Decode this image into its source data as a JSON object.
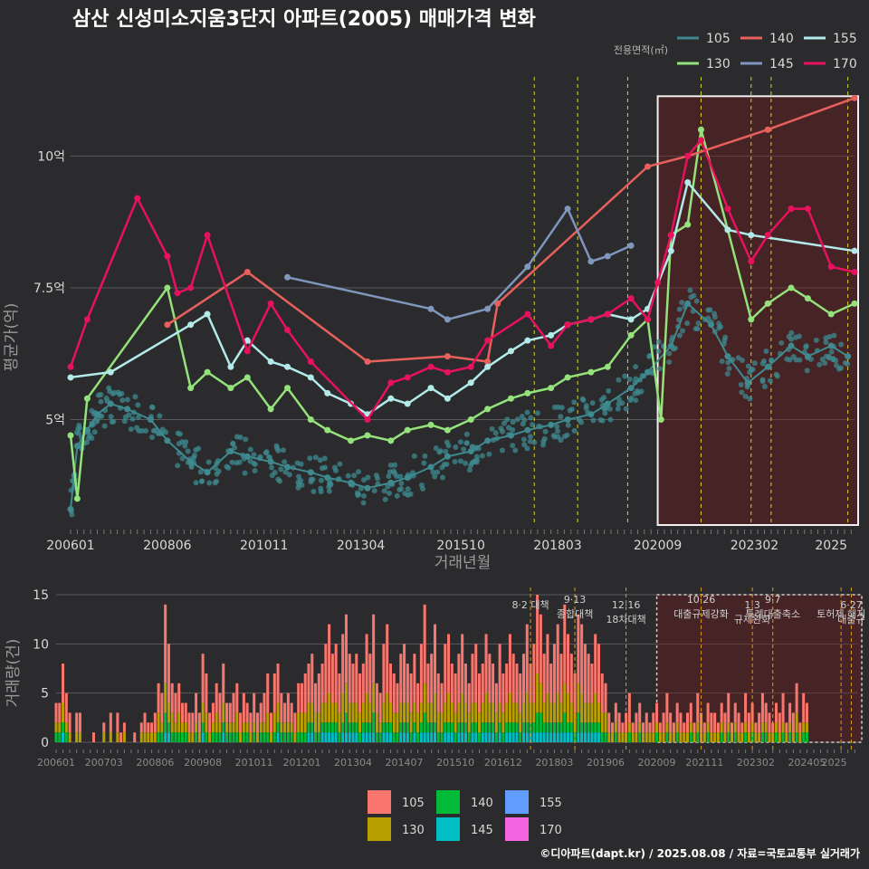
{
  "title": "삼산 신성미소지움3단지 아파트(2005) 매매가격 변화",
  "caption": "©디아파트(dapt.kr) / 2025.08.08 / 자료=국토교통부 실거래가",
  "chart_data": [
    {
      "type": "line",
      "legend_title": "전용면적(㎡)",
      "legend_position": "top-right",
      "xlabel": "거래년월",
      "ylabel": "평균가(억)",
      "x_ticks": [
        "200601",
        "200806",
        "201011",
        "201304",
        "201510",
        "201803",
        "202009",
        "202302",
        "2025"
      ],
      "y_ticks": [
        {
          "v": 5,
          "label": "5억"
        },
        {
          "v": 7.5,
          "label": "7.5억"
        },
        {
          "v": 10,
          "label": "10억"
        }
      ],
      "ylim": [
        3,
        11.5
      ],
      "xlim": [
        "2006-01",
        "2025-08"
      ],
      "grid": true,
      "highlight_range": [
        "2020-09",
        "2025-08"
      ],
      "policy_dates": [
        "2017-08",
        "2018-09",
        "2019-12",
        "2021-10",
        "2023-01",
        "2023-07",
        "2025-06"
      ],
      "series": [
        {
          "name": "105",
          "color": "#3e8a8f",
          "points": [
            [
              "2006-01",
              3.3
            ],
            [
              "2006-03",
              4.5
            ],
            [
              "2006-06",
              4.8
            ],
            [
              "2006-09",
              5.1
            ],
            [
              "2007-01",
              5.3
            ],
            [
              "2007-06",
              5.2
            ],
            [
              "2008-01",
              5.0
            ],
            [
              "2008-06",
              4.6
            ],
            [
              "2009-01",
              4.2
            ],
            [
              "2009-06",
              4.0
            ],
            [
              "2010-01",
              4.4
            ],
            [
              "2010-06",
              4.3
            ],
            [
              "2011-01",
              4.2
            ],
            [
              "2011-06",
              4.1
            ],
            [
              "2012-01",
              4.0
            ],
            [
              "2012-06",
              3.9
            ],
            [
              "2013-01",
              3.8
            ],
            [
              "2013-06",
              3.7
            ],
            [
              "2014-01",
              3.8
            ],
            [
              "2014-06",
              3.9
            ],
            [
              "2015-01",
              4.1
            ],
            [
              "2015-06",
              4.3
            ],
            [
              "2016-01",
              4.4
            ],
            [
              "2016-06",
              4.6
            ],
            [
              "2017-01",
              4.7
            ],
            [
              "2017-06",
              4.8
            ],
            [
              "2018-01",
              4.9
            ],
            [
              "2018-06",
              5.0
            ],
            [
              "2019-01",
              5.1
            ],
            [
              "2019-06",
              5.3
            ],
            [
              "2020-01",
              5.6
            ],
            [
              "2020-06",
              5.9
            ],
            [
              "2021-01",
              6.4
            ],
            [
              "2021-06",
              7.2
            ],
            [
              "2022-01",
              6.8
            ],
            [
              "2022-06",
              6.2
            ],
            [
              "2022-12",
              5.7
            ],
            [
              "2023-06",
              6.0
            ],
            [
              "2024-01",
              6.4
            ],
            [
              "2024-06",
              6.2
            ],
            [
              "2025-01",
              6.4
            ],
            [
              "2025-06",
              6.2
            ]
          ]
        },
        {
          "name": "130",
          "color": "#94e27b",
          "points": [
            [
              "2006-01",
              4.7
            ],
            [
              "2006-03",
              3.5
            ],
            [
              "2006-06",
              5.4
            ],
            [
              "2008-06",
              7.5
            ],
            [
              "2009-01",
              5.6
            ],
            [
              "2009-06",
              5.9
            ],
            [
              "2010-01",
              5.6
            ],
            [
              "2010-06",
              5.8
            ],
            [
              "2011-01",
              5.2
            ],
            [
              "2011-06",
              5.6
            ],
            [
              "2012-01",
              5.0
            ],
            [
              "2012-06",
              4.8
            ],
            [
              "2013-01",
              4.6
            ],
            [
              "2013-06",
              4.7
            ],
            [
              "2014-01",
              4.6
            ],
            [
              "2014-06",
              4.8
            ],
            [
              "2015-01",
              4.9
            ],
            [
              "2015-06",
              4.8
            ],
            [
              "2016-01",
              5.0
            ],
            [
              "2016-06",
              5.2
            ],
            [
              "2017-01",
              5.4
            ],
            [
              "2017-06",
              5.5
            ],
            [
              "2018-01",
              5.6
            ],
            [
              "2018-06",
              5.8
            ],
            [
              "2019-01",
              5.9
            ],
            [
              "2019-06",
              6.0
            ],
            [
              "2020-01",
              6.6
            ],
            [
              "2020-06",
              6.9
            ],
            [
              "2020-10",
              5.0
            ],
            [
              "2021-01",
              8.5
            ],
            [
              "2021-06",
              8.7
            ],
            [
              "2021-10",
              10.5
            ],
            [
              "2022-06",
              8.6
            ],
            [
              "2023-01",
              6.9
            ],
            [
              "2023-06",
              7.2
            ],
            [
              "2024-01",
              7.5
            ],
            [
              "2024-06",
              7.3
            ],
            [
              "2025-01",
              7.0
            ],
            [
              "2025-08",
              7.2
            ]
          ]
        },
        {
          "name": "140",
          "color": "#e8605c",
          "points": [
            [
              "2008-06",
              6.8
            ],
            [
              "2010-06",
              7.8
            ],
            [
              "2013-06",
              6.1
            ],
            [
              "2015-06",
              6.2
            ],
            [
              "2016-06",
              6.1
            ],
            [
              "2016-09",
              7.2
            ],
            [
              "2020-06",
              9.8
            ],
            [
              "2021-06",
              10.0
            ],
            [
              "2023-06",
              10.5
            ],
            [
              "2025-08",
              11.1
            ]
          ]
        },
        {
          "name": "145",
          "color": "#7f96bd",
          "points": [
            [
              "2011-06",
              7.7
            ],
            [
              "2015-01",
              7.1
            ],
            [
              "2015-06",
              6.9
            ],
            [
              "2016-06",
              7.1
            ],
            [
              "2017-06",
              7.9
            ],
            [
              "2018-06",
              9.0
            ],
            [
              "2019-01",
              8.0
            ],
            [
              "2019-06",
              8.1
            ],
            [
              "2020-01",
              8.3
            ]
          ]
        },
        {
          "name": "155",
          "color": "#b2eaea",
          "points": [
            [
              "2006-01",
              5.8
            ],
            [
              "2007-01",
              5.9
            ],
            [
              "2009-01",
              6.8
            ],
            [
              "2009-06",
              7.0
            ],
            [
              "2010-01",
              6.0
            ],
            [
              "2010-06",
              6.5
            ],
            [
              "2011-01",
              6.1
            ],
            [
              "2011-06",
              6.0
            ],
            [
              "2012-01",
              5.8
            ],
            [
              "2012-06",
              5.5
            ],
            [
              "2013-01",
              5.3
            ],
            [
              "2013-06",
              5.1
            ],
            [
              "2014-01",
              5.4
            ],
            [
              "2014-06",
              5.3
            ],
            [
              "2015-01",
              5.6
            ],
            [
              "2015-06",
              5.4
            ],
            [
              "2016-01",
              5.7
            ],
            [
              "2016-06",
              6.0
            ],
            [
              "2017-01",
              6.3
            ],
            [
              "2017-06",
              6.5
            ],
            [
              "2018-01",
              6.6
            ],
            [
              "2018-06",
              6.8
            ],
            [
              "2019-01",
              6.9
            ],
            [
              "2019-06",
              7.0
            ],
            [
              "2020-01",
              6.9
            ],
            [
              "2020-06",
              7.1
            ],
            [
              "2021-01",
              8.2
            ],
            [
              "2021-06",
              9.5
            ],
            [
              "2022-06",
              8.6
            ],
            [
              "2023-01",
              8.5
            ],
            [
              "2025-08",
              8.2
            ]
          ]
        },
        {
          "name": "170",
          "color": "#e8115e",
          "points": [
            [
              "2006-01",
              6.0
            ],
            [
              "2006-06",
              6.9
            ],
            [
              "2007-09",
              9.2
            ],
            [
              "2008-06",
              8.1
            ],
            [
              "2008-09",
              7.4
            ],
            [
              "2009-01",
              7.5
            ],
            [
              "2009-06",
              8.5
            ],
            [
              "2010-06",
              6.3
            ],
            [
              "2011-01",
              7.2
            ],
            [
              "2011-06",
              6.7
            ],
            [
              "2012-01",
              6.1
            ],
            [
              "2013-06",
              5.0
            ],
            [
              "2014-01",
              5.7
            ],
            [
              "2014-06",
              5.8
            ],
            [
              "2015-01",
              6.0
            ],
            [
              "2015-06",
              5.9
            ],
            [
              "2016-01",
              6.0
            ],
            [
              "2016-06",
              6.5
            ],
            [
              "2017-06",
              7.0
            ],
            [
              "2018-01",
              6.4
            ],
            [
              "2018-06",
              6.8
            ],
            [
              "2019-01",
              6.9
            ],
            [
              "2019-06",
              7.0
            ],
            [
              "2020-01",
              7.3
            ],
            [
              "2020-06",
              6.9
            ],
            [
              "2020-09",
              7.6
            ],
            [
              "2021-01",
              8.5
            ],
            [
              "2021-06",
              10.0
            ],
            [
              "2021-10",
              10.3
            ],
            [
              "2022-06",
              9.0
            ],
            [
              "2023-01",
              8.0
            ],
            [
              "2023-06",
              8.5
            ],
            [
              "2024-01",
              9.0
            ],
            [
              "2024-06",
              9.0
            ],
            [
              "2025-01",
              7.9
            ],
            [
              "2025-08",
              7.8
            ]
          ]
        }
      ]
    },
    {
      "type": "bar",
      "stacked": true,
      "ylabel": "거래량(건)",
      "x_ticks": [
        "200601",
        "200703",
        "200806",
        "200908",
        "201011",
        "201201",
        "201304",
        "201407",
        "201510",
        "201612",
        "201803",
        "201906",
        "202009",
        "202111",
        "202302",
        "202405",
        "2025"
      ],
      "y_ticks": [
        0,
        5,
        10,
        15
      ],
      "ylim": [
        0,
        15
      ],
      "legend_position": "bottom",
      "highlight_range": [
        "2020-09",
        "2025-08"
      ],
      "policy_labels": [
        {
          "date": "2017-08",
          "top": "8·2 대책",
          "bottom": ""
        },
        {
          "date": "2018-09",
          "top": "9·13",
          "bottom": "종합대책"
        },
        {
          "date": "2019-12",
          "top": "12·16",
          "bottom": "18차대책"
        },
        {
          "date": "2021-10",
          "top": "10·26",
          "bottom": "대출규제강화"
        },
        {
          "date": "2023-01",
          "top": "1·3",
          "bottom": "규제완화"
        },
        {
          "date": "2023-07",
          "top": "9·7",
          "bottom": "특례대출축소"
        },
        {
          "date": "2025-06",
          "top": "6·27",
          "bottom": "대출규"
        },
        {
          "date": "2025-03",
          "top": "",
          "bottom": "토허제 해지"
        }
      ],
      "series": [
        {
          "name": "105",
          "color": "#f8766d"
        },
        {
          "name": "130",
          "color": "#b79f00"
        },
        {
          "name": "140",
          "color": "#00ba38"
        },
        {
          "name": "145",
          "color": "#00bfc4"
        },
        {
          "name": "155",
          "color": "#619cff"
        },
        {
          "name": "170",
          "color": "#f564e3"
        }
      ],
      "monthly_volume": [
        4,
        4,
        8,
        5,
        3,
        0,
        3,
        3,
        0,
        0,
        0,
        1,
        0,
        0,
        2,
        0,
        3,
        0,
        3,
        1,
        2,
        0,
        0,
        1,
        0,
        2,
        3,
        2,
        2,
        3,
        6,
        5,
        14,
        10,
        6,
        5,
        6,
        4,
        4,
        3,
        3,
        5,
        3,
        9,
        7,
        3,
        4,
        6,
        5,
        8,
        4,
        4,
        5,
        6,
        3,
        5,
        4,
        3,
        5,
        3,
        4,
        5,
        7,
        3,
        7,
        8,
        5,
        4,
        5,
        4,
        3,
        6,
        6,
        7,
        8,
        9,
        6,
        7,
        8,
        10,
        12,
        9,
        10,
        7,
        11,
        13,
        9,
        8,
        9,
        7,
        8,
        11,
        9,
        13,
        6,
        5,
        10,
        12,
        8,
        7,
        6,
        9,
        10,
        8,
        7,
        9,
        6,
        10,
        14,
        8,
        9,
        12,
        7,
        6,
        10,
        11,
        8,
        7,
        9,
        11,
        8,
        6,
        9,
        10,
        7,
        8,
        11,
        9,
        8,
        6,
        10,
        7,
        8,
        11,
        9,
        8,
        7,
        9,
        12,
        8,
        10,
        15,
        13,
        9,
        11,
        8,
        10,
        12,
        9,
        14,
        11,
        9,
        7,
        13,
        12,
        10,
        9,
        8,
        11,
        10,
        7,
        6,
        3,
        2,
        4,
        3,
        2,
        3,
        5,
        2,
        3,
        4,
        2,
        3,
        2,
        3,
        4,
        2,
        3,
        5,
        3,
        2,
        4,
        3,
        2,
        3,
        4,
        2,
        5,
        3,
        2,
        4,
        3,
        3,
        2,
        4,
        3,
        5,
        2,
        4,
        3,
        2,
        5,
        3,
        4,
        2,
        3,
        5,
        4,
        3,
        2,
        4,
        3,
        5,
        2,
        4,
        3,
        6,
        2,
        5,
        4
      ]
    }
  ]
}
